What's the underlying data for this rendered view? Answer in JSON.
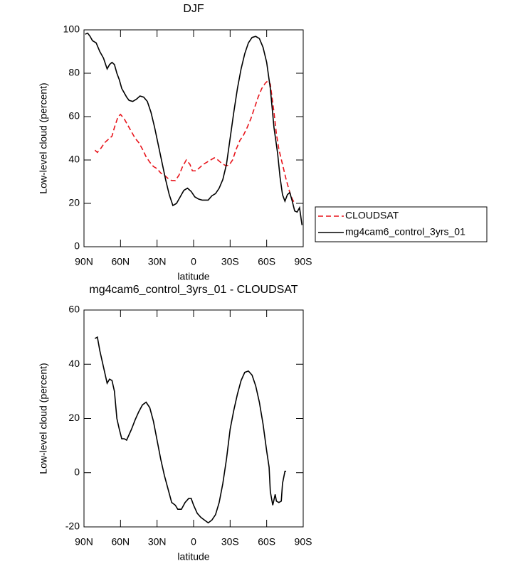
{
  "chart_data": [
    {
      "type": "line",
      "title": "DJF",
      "xlabel": "latitude",
      "ylabel": "Low-level cloud (percent)",
      "xlim": [
        90,
        -90
      ],
      "xticks": [
        {
          "value": 90,
          "label": "90N"
        },
        {
          "value": 60,
          "label": "60N"
        },
        {
          "value": 30,
          "label": "30N"
        },
        0,
        {
          "value": -30,
          "label": "30S"
        },
        {
          "value": -60,
          "label": "60S"
        },
        {
          "value": -90,
          "label": "90S"
        }
      ],
      "ylim": [
        0,
        100
      ],
      "yticks": [
        0,
        20,
        40,
        60,
        80,
        100
      ],
      "legend": "right",
      "series": [
        {
          "name": "CLOUDSAT",
          "color": "#e8141b",
          "dash": true,
          "x": [
            81,
            79,
            76,
            73,
            70,
            67,
            65,
            62,
            60,
            57,
            54,
            51,
            48,
            45,
            42,
            39,
            36,
            33,
            30,
            27,
            24,
            21,
            18,
            15,
            12,
            9,
            6,
            3,
            1,
            -2,
            -5,
            -8,
            -11,
            -14,
            -17,
            -20,
            -23,
            -26,
            -29,
            -32,
            -35,
            -38,
            -41,
            -44,
            -47,
            -50,
            -53,
            -56,
            -59,
            -61,
            -63,
            -66,
            -68,
            -70,
            -73,
            -76,
            -79,
            -81,
            -83
          ],
          "values": [
            44.5,
            43.5,
            45.5,
            48,
            49.5,
            51,
            55,
            60,
            61,
            59,
            56,
            53,
            50,
            48,
            45,
            41.5,
            39,
            37,
            36,
            34,
            33,
            31.5,
            30.5,
            30.5,
            33,
            37,
            40,
            38,
            35,
            35,
            36.5,
            38,
            39,
            40,
            41,
            40,
            38.5,
            37.5,
            37.5,
            40,
            45,
            49,
            51.5,
            55,
            59,
            64,
            69,
            73,
            75.5,
            76.5,
            75,
            62,
            52,
            45,
            38,
            31,
            25,
            22,
            20
          ]
        },
        {
          "name": "mg4cam6_control_3yrs_01",
          "color": "#000000",
          "dash": false,
          "x": [
            89,
            87,
            85,
            83,
            80,
            77,
            74,
            71,
            69,
            67,
            65,
            63,
            61,
            59,
            57,
            55,
            53,
            50,
            47,
            44,
            41,
            38,
            35,
            32,
            29,
            26,
            23,
            20,
            17,
            14,
            11,
            8,
            5,
            2,
            -1,
            -4,
            -7,
            -10,
            -12,
            -15,
            -18,
            -21,
            -24,
            -27,
            -30,
            -33,
            -36,
            -39,
            -42,
            -45,
            -48,
            -51,
            -54,
            -57,
            -60,
            -63,
            -66,
            -69,
            -71,
            -73,
            -75,
            -77,
            -79,
            -81,
            -83,
            -85,
            -87,
            -89
          ],
          "values": [
            98,
            98.5,
            97,
            95,
            94,
            90,
            87,
            82,
            84,
            85,
            84,
            80,
            77,
            73,
            71,
            69,
            67.5,
            67,
            68,
            69.5,
            69,
            67,
            62,
            55,
            47,
            39,
            31,
            24,
            19,
            20,
            23,
            26,
            27,
            25.5,
            23,
            22,
            21.5,
            21.5,
            21.5,
            23.5,
            24.5,
            27,
            31,
            38,
            50,
            62,
            73,
            82,
            89,
            94,
            96.5,
            97,
            96,
            92,
            85,
            73,
            55,
            43,
            32,
            24,
            21,
            24,
            25,
            21,
            16.5,
            16,
            18,
            10
          ]
        }
      ]
    },
    {
      "type": "line",
      "title": "mg4cam6_control_3yrs_01 - CLOUDSAT",
      "xlabel": "latitude",
      "ylabel": "Low-level cloud (percent)",
      "xlim": [
        90,
        -90
      ],
      "xticks": [
        {
          "value": 90,
          "label": "90N"
        },
        {
          "value": 60,
          "label": "60N"
        },
        {
          "value": 30,
          "label": "30N"
        },
        0,
        {
          "value": -30,
          "label": "30S"
        },
        {
          "value": -60,
          "label": "60S"
        },
        {
          "value": -90,
          "label": "90S"
        }
      ],
      "ylim": [
        -20,
        60
      ],
      "yticks": [
        -20,
        0,
        20,
        40,
        60
      ],
      "series": [
        {
          "color": "#000000",
          "dash": false,
          "x": [
            81,
            79,
            77,
            75,
            73,
            71,
            69,
            67,
            65,
            63,
            61,
            59,
            57,
            55,
            53,
            51,
            48,
            45,
            42,
            39,
            36,
            33,
            30,
            27,
            24,
            21,
            18,
            15,
            13,
            10,
            7,
            4,
            2,
            0,
            -3,
            -6,
            -9,
            -12,
            -15,
            -18,
            -21,
            -24,
            -27,
            -30,
            -33,
            -36,
            -39,
            -42,
            -45,
            -48,
            -51,
            -54,
            -57,
            -60,
            -62,
            -63,
            -65,
            -67,
            -68,
            -70,
            -72,
            -73,
            -75,
            -76
          ],
          "values": [
            49.5,
            50,
            45,
            41,
            37,
            33,
            34.5,
            34,
            30,
            20,
            16,
            12.5,
            12.5,
            12,
            14,
            16,
            19.5,
            22.5,
            25,
            26,
            24,
            19,
            12,
            5,
            -1,
            -6,
            -11,
            -12,
            -13.5,
            -13.5,
            -11,
            -9.5,
            -9.5,
            -12,
            -15,
            -16.5,
            -17.5,
            -18.5,
            -17.5,
            -15.5,
            -11,
            -4,
            5,
            16,
            23,
            29,
            34,
            37,
            37.5,
            36,
            32,
            26,
            18,
            8,
            2,
            -7,
            -12,
            -8,
            -10.5,
            -11,
            -10.5,
            -4,
            0.5,
            0.5
          ]
        }
      ]
    }
  ]
}
